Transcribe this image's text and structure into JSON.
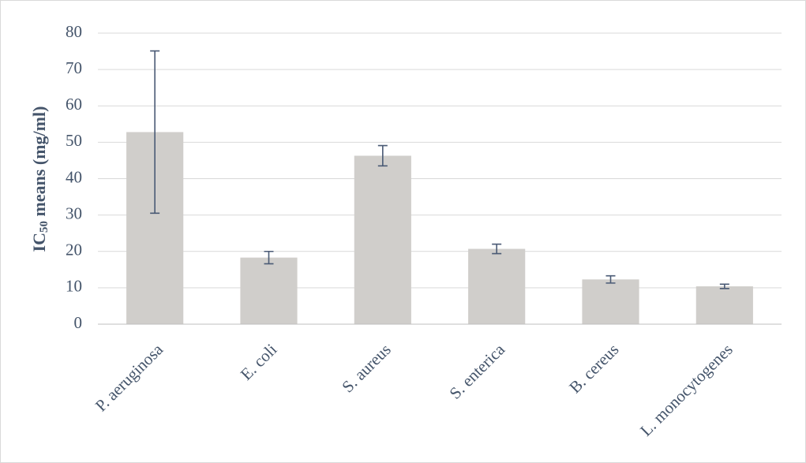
{
  "chart_data": {
    "type": "bar",
    "y_label": {
      "main": "IC",
      "subscript": "50",
      "rest": " means (mg/ml)"
    },
    "categories": [
      "P. aeruginosa",
      "E. coli",
      "S. aureus",
      "S. enterica",
      "B. cereus",
      "L. monocytogenes"
    ],
    "values": [
      52.8,
      18.3,
      46.3,
      20.7,
      12.3,
      10.4
    ],
    "errors": [
      22.3,
      1.7,
      2.8,
      1.3,
      1.0,
      0.6
    ],
    "color": "#d0cecb",
    "error_color": "#4a5a75",
    "ylim": [
      0,
      80
    ],
    "yticks": [
      0,
      10,
      20,
      30,
      40,
      50,
      60,
      70,
      80
    ],
    "grid": true
  }
}
